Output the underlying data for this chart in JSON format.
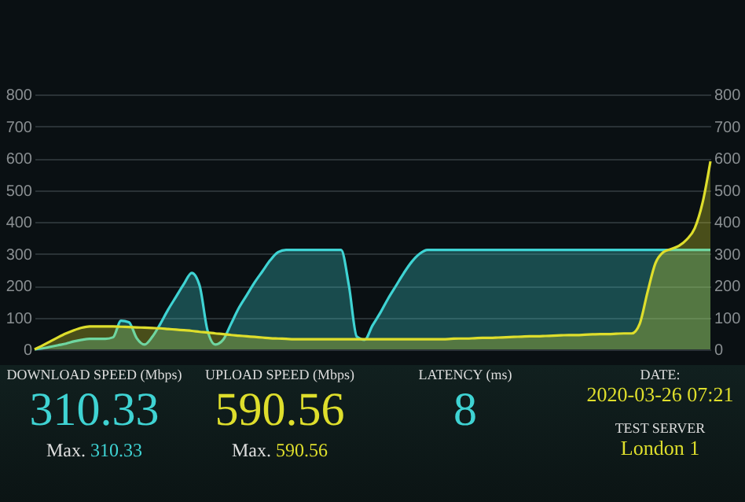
{
  "chart_data": {
    "type": "area",
    "categories": [
      null,
      null,
      null,
      null,
      null,
      null,
      null,
      null,
      null,
      null,
      null,
      null,
      null,
      null,
      null,
      null,
      null,
      null,
      null,
      null,
      null,
      null,
      null,
      null,
      null,
      null,
      null,
      null,
      null,
      null,
      null,
      null,
      null,
      null,
      null,
      null,
      null,
      null,
      null,
      null,
      null,
      null,
      null,
      null,
      null,
      null,
      null,
      null,
      null,
      null,
      null,
      null,
      null,
      null,
      null,
      null,
      null,
      null,
      null,
      null,
      null,
      null,
      null,
      null,
      null,
      null,
      null,
      null,
      null,
      null,
      null,
      null,
      null,
      null,
      null,
      null,
      null,
      null,
      null,
      null,
      null,
      null,
      null,
      null,
      null,
      null,
      null
    ],
    "series": [
      {
        "color": "#3fd3d3",
        "values": [
          0,
          3,
          8,
          13,
          18,
          25,
          30,
          33,
          33,
          33,
          38,
          90,
          85,
          35,
          15,
          40,
          80,
          125,
          165,
          205,
          240,
          200,
          60,
          15,
          30,
          80,
          130,
          170,
          210,
          245,
          280,
          305,
          312,
          312,
          312,
          312,
          312,
          312,
          312,
          312,
          200,
          40,
          30,
          75,
          115,
          160,
          200,
          240,
          275,
          300,
          312,
          312,
          312,
          312,
          312,
          312,
          312,
          312,
          312,
          312,
          312,
          312,
          312,
          312,
          312,
          312,
          312,
          312,
          312,
          312,
          312,
          312,
          312,
          312,
          312,
          312,
          312,
          312,
          312,
          312,
          312,
          312,
          312,
          312,
          312,
          312,
          312
        ]
      },
      {
        "color": "#dede2c",
        "axis": "y2",
        "values": [
          0,
          12,
          25,
          38,
          50,
          60,
          68,
          72,
          72,
          72,
          72,
          71,
          70,
          69,
          68,
          67,
          66,
          64,
          62,
          60,
          58,
          55,
          53,
          50,
          48,
          45,
          43,
          41,
          39,
          37,
          35,
          34,
          33,
          32,
          32,
          32,
          32,
          32,
          32,
          32,
          32,
          32,
          32,
          32,
          32,
          32,
          32,
          32,
          32,
          32,
          32,
          32,
          32,
          33,
          34,
          34,
          35,
          36,
          36,
          37,
          38,
          39,
          40,
          41,
          41,
          42,
          43,
          44,
          45,
          45,
          46,
          47,
          48,
          48,
          49,
          50,
          50,
          80,
          180,
          270,
          305,
          315,
          325,
          345,
          380,
          460,
          590
        ]
      }
    ],
    "ylim": [
      0,
      800
    ],
    "yticks": [
      0,
      100,
      200,
      300,
      400,
      500,
      600,
      700,
      800
    ],
    "y2lim": [
      0,
      800
    ],
    "y2ticks": [
      0,
      100,
      200,
      300,
      400,
      500,
      600,
      700,
      800
    ],
    "grid": "y",
    "annotations": [
      "DOWNLOAD SPEED (Mbps)",
      "310.33",
      "Max. 310.33",
      "UPLOAD SPEED (Mbps)",
      "590.56",
      "Max. 590.56",
      "LATENCY (ms)",
      "8",
      "DATE:",
      "2020-03-26 07:21",
      "TEST SERVER",
      "London 1"
    ]
  }
}
